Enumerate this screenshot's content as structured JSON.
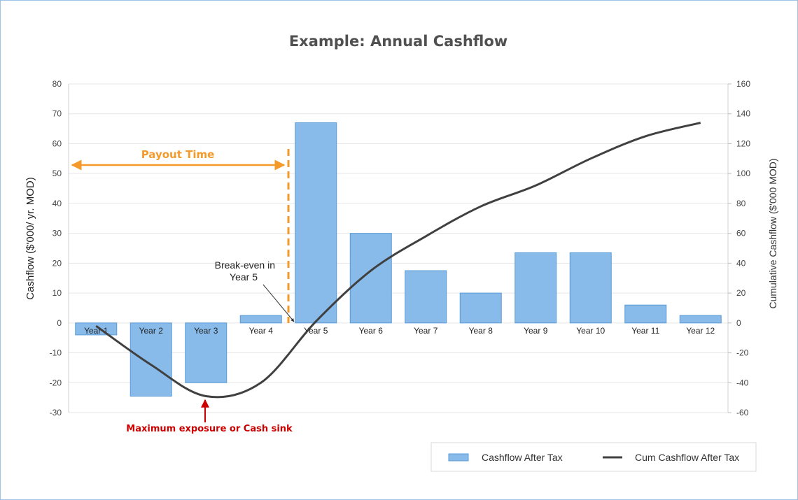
{
  "chart_data": {
    "type": "bar",
    "title": "Example: Annual Cashflow",
    "categories": [
      "Year 1",
      "Year 2",
      "Year 3",
      "Year 4",
      "Year 5",
      "Year 6",
      "Year 7",
      "Year 8",
      "Year 9",
      "Year 10",
      "Year 11",
      "Year 12"
    ],
    "series": [
      {
        "name": "Cashflow After Tax",
        "type": "bar",
        "axis": "left",
        "color": "#88bbea",
        "values": [
          -4,
          -24.5,
          -20,
          2.5,
          67,
          30,
          17.5,
          10,
          23.5,
          23.5,
          6,
          2.5
        ]
      },
      {
        "name": "Cum Cashflow After Tax",
        "type": "line",
        "axis": "right",
        "color": "#404040",
        "values": [
          -2,
          -28,
          -49,
          -40,
          1,
          35,
          58,
          78,
          92,
          110,
          125,
          134
        ]
      }
    ],
    "ylabel": "Cashflow ($'000/ yr. MOD)",
    "y2label": "Cumulative Cashflow ($'000 MOD)",
    "ylim": [
      -30,
      80
    ],
    "y2lim": [
      -60,
      160
    ],
    "yticks": [
      80,
      70,
      60,
      50,
      40,
      30,
      20,
      10,
      0,
      -10,
      -20,
      -30
    ],
    "y2ticks": [
      160,
      140,
      120,
      100,
      80,
      60,
      40,
      20,
      0,
      -20,
      -40,
      -60
    ],
    "grid": true,
    "legend_position": "bottom-right",
    "annotations": {
      "payout_label": "Payout Time",
      "breakeven_line1": "Break-even in",
      "breakeven_line2": "Year 5",
      "sink_label": "Maximum exposure or Cash sink"
    },
    "colors": {
      "payout": "#f39a2a",
      "sink": "#cc0000",
      "grid": "#e6e6e6",
      "bar_stroke": "#5b9bd5"
    }
  }
}
